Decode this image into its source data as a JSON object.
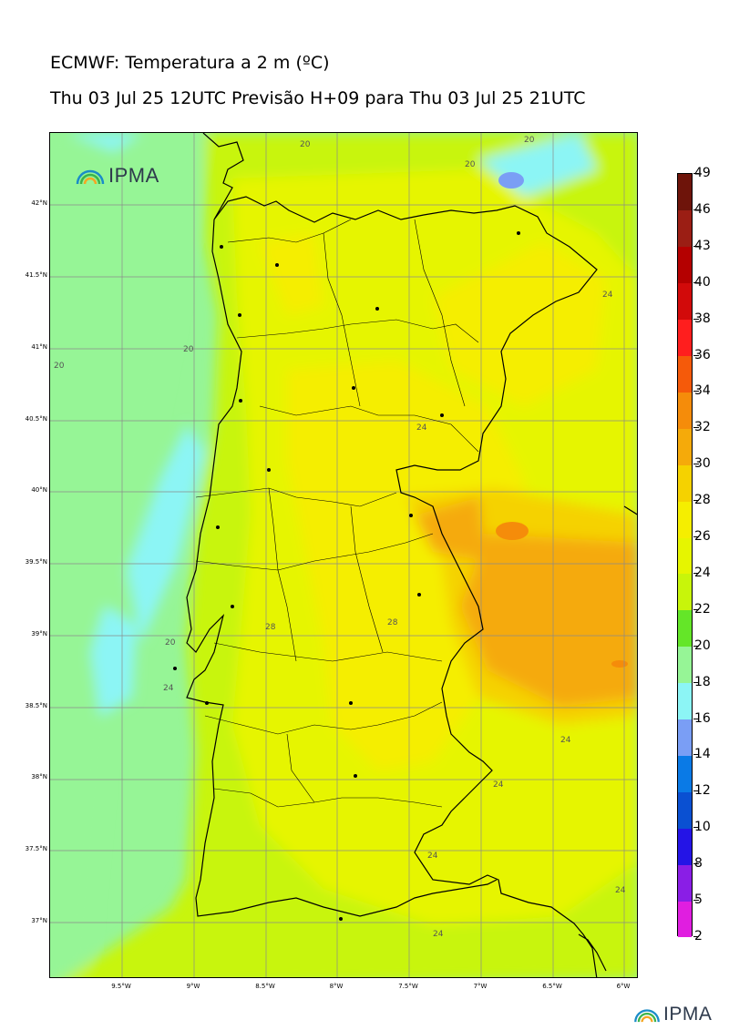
{
  "header": {
    "title": "ECMWF: Temperatura a 2 m (ºC)",
    "subtitle": "Thu 03 Jul 25 12UTC Previsão H+09 para Thu 03 Jul 25 21UTC"
  },
  "logo": {
    "text": "IPMA"
  },
  "map": {
    "lat_labels": [
      "42°N",
      "41.5°N",
      "41°N",
      "40.5°N",
      "40°N",
      "39.5°N",
      "39°N",
      "38.5°N",
      "38°N",
      "37.5°N",
      "37°N"
    ],
    "lon_labels": [
      "9.5°W",
      "9°W",
      "8.5°W",
      "8°W",
      "7.5°W",
      "7°W",
      "6.5°W",
      "6°W"
    ],
    "contour_labels": [
      "20",
      "20",
      "20",
      "20",
      "20",
      "20",
      "24",
      "24",
      "24",
      "24",
      "24",
      "24",
      "24",
      "24",
      "28",
      "28"
    ]
  },
  "colorbar": {
    "levels": [
      "2",
      "5",
      "8",
      "10",
      "12",
      "14",
      "16",
      "18",
      "20",
      "22",
      "24",
      "26",
      "28",
      "30",
      "32",
      "34",
      "36",
      "38",
      "40",
      "43",
      "46",
      "49"
    ],
    "colors": [
      "#e01ee0",
      "#8a1ee6",
      "#2414e6",
      "#0a50d2",
      "#0a7ae6",
      "#7a9ef5",
      "#8cf5f5",
      "#96f596",
      "#64e628",
      "#c8f50a",
      "#e6f500",
      "#f5ee00",
      "#f5d200",
      "#f5aa0a",
      "#f58c0a",
      "#f55a0a",
      "#ff1e1e",
      "#d20a0a",
      "#b40000",
      "#9b1e14",
      "#6e140a",
      "#460000"
    ]
  }
}
